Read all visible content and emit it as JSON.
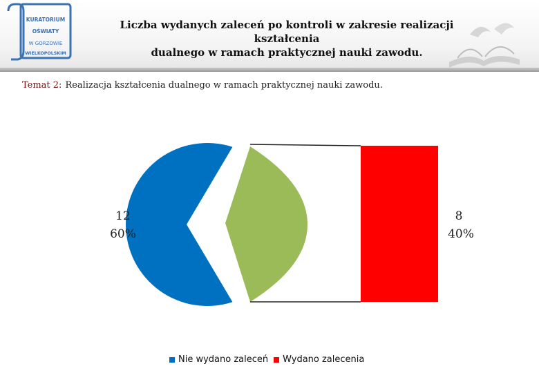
{
  "header": {
    "logo_lines": [
      "KURATORIUM",
      "OŚWIATY",
      "W GORZOWIE",
      "WIELKOPOLSKIM"
    ],
    "title_line1": "Liczba wydanych zaleceń po kontroli w zakresie realizacji kształcenia",
    "title_line2": "dualnego w ramach praktycznej nauki zawodu."
  },
  "topic": {
    "label": "Temat 2:",
    "text": "Realizacja kształcenia dualnego w ramach praktycznej nauki zawodu."
  },
  "colors": {
    "blue": "#0070c0",
    "green": "#9bbb59",
    "red": "#ff0000",
    "logo_blue": "#3a72b4"
  },
  "chart_data": {
    "type": "pie",
    "title": "",
    "slices": [
      {
        "label": "Nie wydano zaleceń",
        "value": 12,
        "percent": "60%",
        "value_label": "12",
        "color": "#0070c0"
      },
      {
        "label": "Wydano zalecenia",
        "value": 8,
        "percent": "40%",
        "value_label": "8",
        "color": "#ff0000"
      }
    ],
    "legend_position": "bottom"
  }
}
